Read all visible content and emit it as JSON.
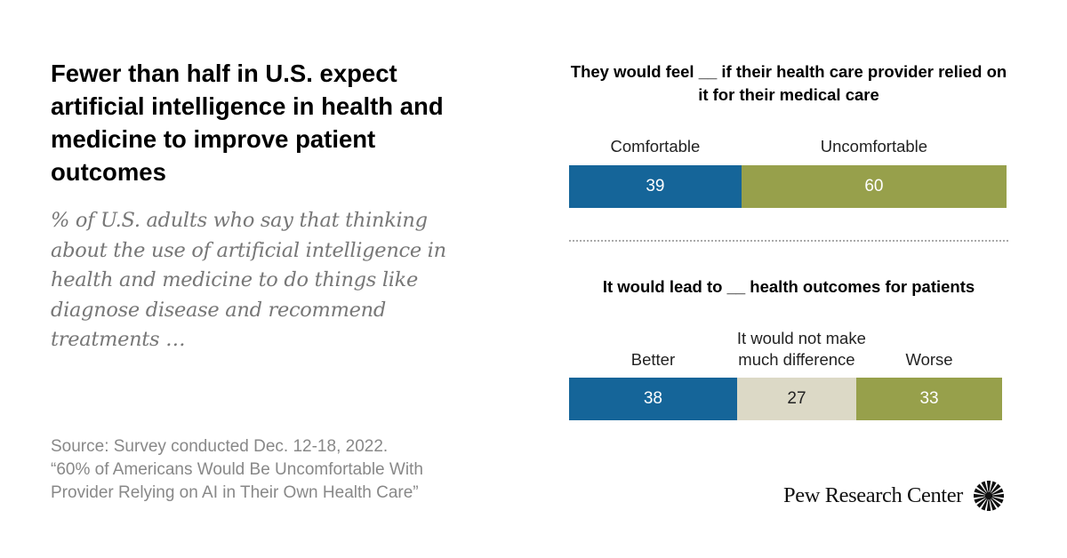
{
  "title": "Fewer than half in U.S. expect artificial intelligence in health and medicine to improve patient outcomes",
  "subtitle": "% of U.S. adults who say that thinking about the use of artificial intelligence in health and medicine to do things like diagnose disease and recommend treatments …",
  "source": {
    "line1": "Source: Survey conducted Dec. 12-18, 2022.",
    "line2": "“60% of Americans Would Be Uncomfortable With",
    "line3": "Provider Relying on AI in Their Own Health Care”"
  },
  "logo": {
    "text": "Pew Research Center",
    "icon": "pew-sunburst-icon"
  },
  "colors": {
    "blue": "#156599",
    "olive": "#97a04b",
    "beige": "#dcd9c6",
    "white_text": "#ffffff",
    "dark_text": "#222222"
  },
  "chart_data": [
    {
      "type": "bar",
      "orientation": "horizontal-stacked",
      "title": "They would feel __ if their health care provider relied on it for their medical care",
      "categories": [
        "Comfortable",
        "Uncomfortable"
      ],
      "values": [
        39,
        60
      ],
      "colors": [
        "#156599",
        "#97a04b"
      ],
      "label_colors": [
        "#ffffff",
        "#ffffff"
      ],
      "unit": "%",
      "xlim": [
        0,
        100
      ]
    },
    {
      "type": "bar",
      "orientation": "horizontal-stacked",
      "title": "It would lead to __ health outcomes for patients",
      "categories": [
        "Better",
        "It would not make much difference",
        "Worse"
      ],
      "category_label_lines": [
        [
          "Better"
        ],
        [
          "It would not make",
          "much difference"
        ],
        [
          "Worse"
        ]
      ],
      "values": [
        38,
        27,
        33
      ],
      "colors": [
        "#156599",
        "#dcd9c6",
        "#97a04b"
      ],
      "label_colors": [
        "#ffffff",
        "#222222",
        "#ffffff"
      ],
      "unit": "%",
      "xlim": [
        0,
        100
      ]
    }
  ]
}
